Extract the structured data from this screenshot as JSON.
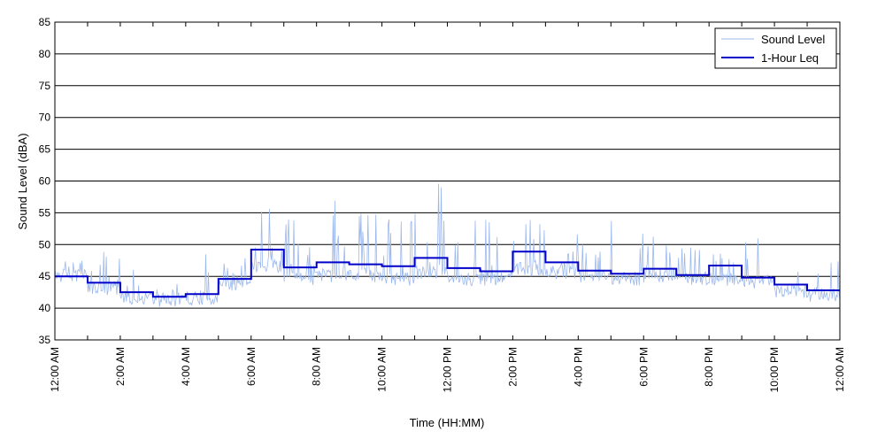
{
  "chart_data": {
    "type": "line",
    "title": "",
    "xlabel": "Time (HH:MM)",
    "ylabel": "Sound Level (dBA)",
    "ylim": [
      35,
      85
    ],
    "xlim": [
      0,
      24
    ],
    "grid": "horizontal",
    "legend": "top-right",
    "y_ticks": [
      "35",
      "40",
      "45",
      "50",
      "55",
      "60",
      "65",
      "70",
      "75",
      "80",
      "85"
    ],
    "x_ticks": [
      {
        "hour": 0,
        "label": "12:00 AM"
      },
      {
        "hour": 2,
        "label": "2:00 AM"
      },
      {
        "hour": 4,
        "label": "4:00 AM"
      },
      {
        "hour": 6,
        "label": "6:00 AM"
      },
      {
        "hour": 8,
        "label": "8:00 AM"
      },
      {
        "hour": 10,
        "label": "10:00 AM"
      },
      {
        "hour": 12,
        "label": "12:00 PM"
      },
      {
        "hour": 14,
        "label": "2:00 PM"
      },
      {
        "hour": 16,
        "label": "4:00 PM"
      },
      {
        "hour": 18,
        "label": "6:00 PM"
      },
      {
        "hour": 20,
        "label": "8:00 PM"
      },
      {
        "hour": 22,
        "label": "10:00 PM"
      },
      {
        "hour": 24,
        "label": "12:00 AM"
      }
    ],
    "series": [
      {
        "name": "Sound Level",
        "color": "#9bb8ee",
        "hourly_base": [
          45.0,
          43.0,
          41.5,
          41.2,
          41.5,
          43.5,
          46.5,
          44.5,
          45.0,
          45.0,
          44.5,
          45.5,
          44.5,
          44.5,
          46.0,
          45.5,
          45.0,
          44.5,
          45.0,
          44.5,
          44.5,
          44.0,
          42.5,
          42.0
        ],
        "hourly_peak": [
          47.5,
          49.0,
          47.5,
          44.0,
          50.0,
          48.0,
          56.0,
          54.0,
          57.0,
          55.0,
          54.0,
          59.7,
          55.0,
          54.0,
          56.7,
          53.0,
          50.0,
          54.0,
          52.0,
          50.0,
          49.0,
          51.0,
          47.0,
          47.5
        ],
        "note": "Noisy 1-minute samples fluctuating between hourly base and peak levels"
      },
      {
        "name": "1-Hour Leq",
        "color": "#0000c8",
        "hours": [
          0,
          1,
          2,
          3,
          4,
          5,
          6,
          7,
          8,
          9,
          10,
          11,
          12,
          13,
          14,
          15,
          16,
          17,
          18,
          19,
          20,
          21,
          22,
          23
        ],
        "values": [
          45.0,
          44.0,
          42.5,
          41.8,
          42.2,
          44.6,
          49.2,
          46.4,
          47.2,
          46.9,
          46.6,
          47.9,
          46.3,
          45.8,
          48.9,
          47.2,
          45.9,
          45.4,
          46.2,
          45.2,
          46.7,
          44.8,
          43.7,
          42.8
        ]
      }
    ]
  }
}
